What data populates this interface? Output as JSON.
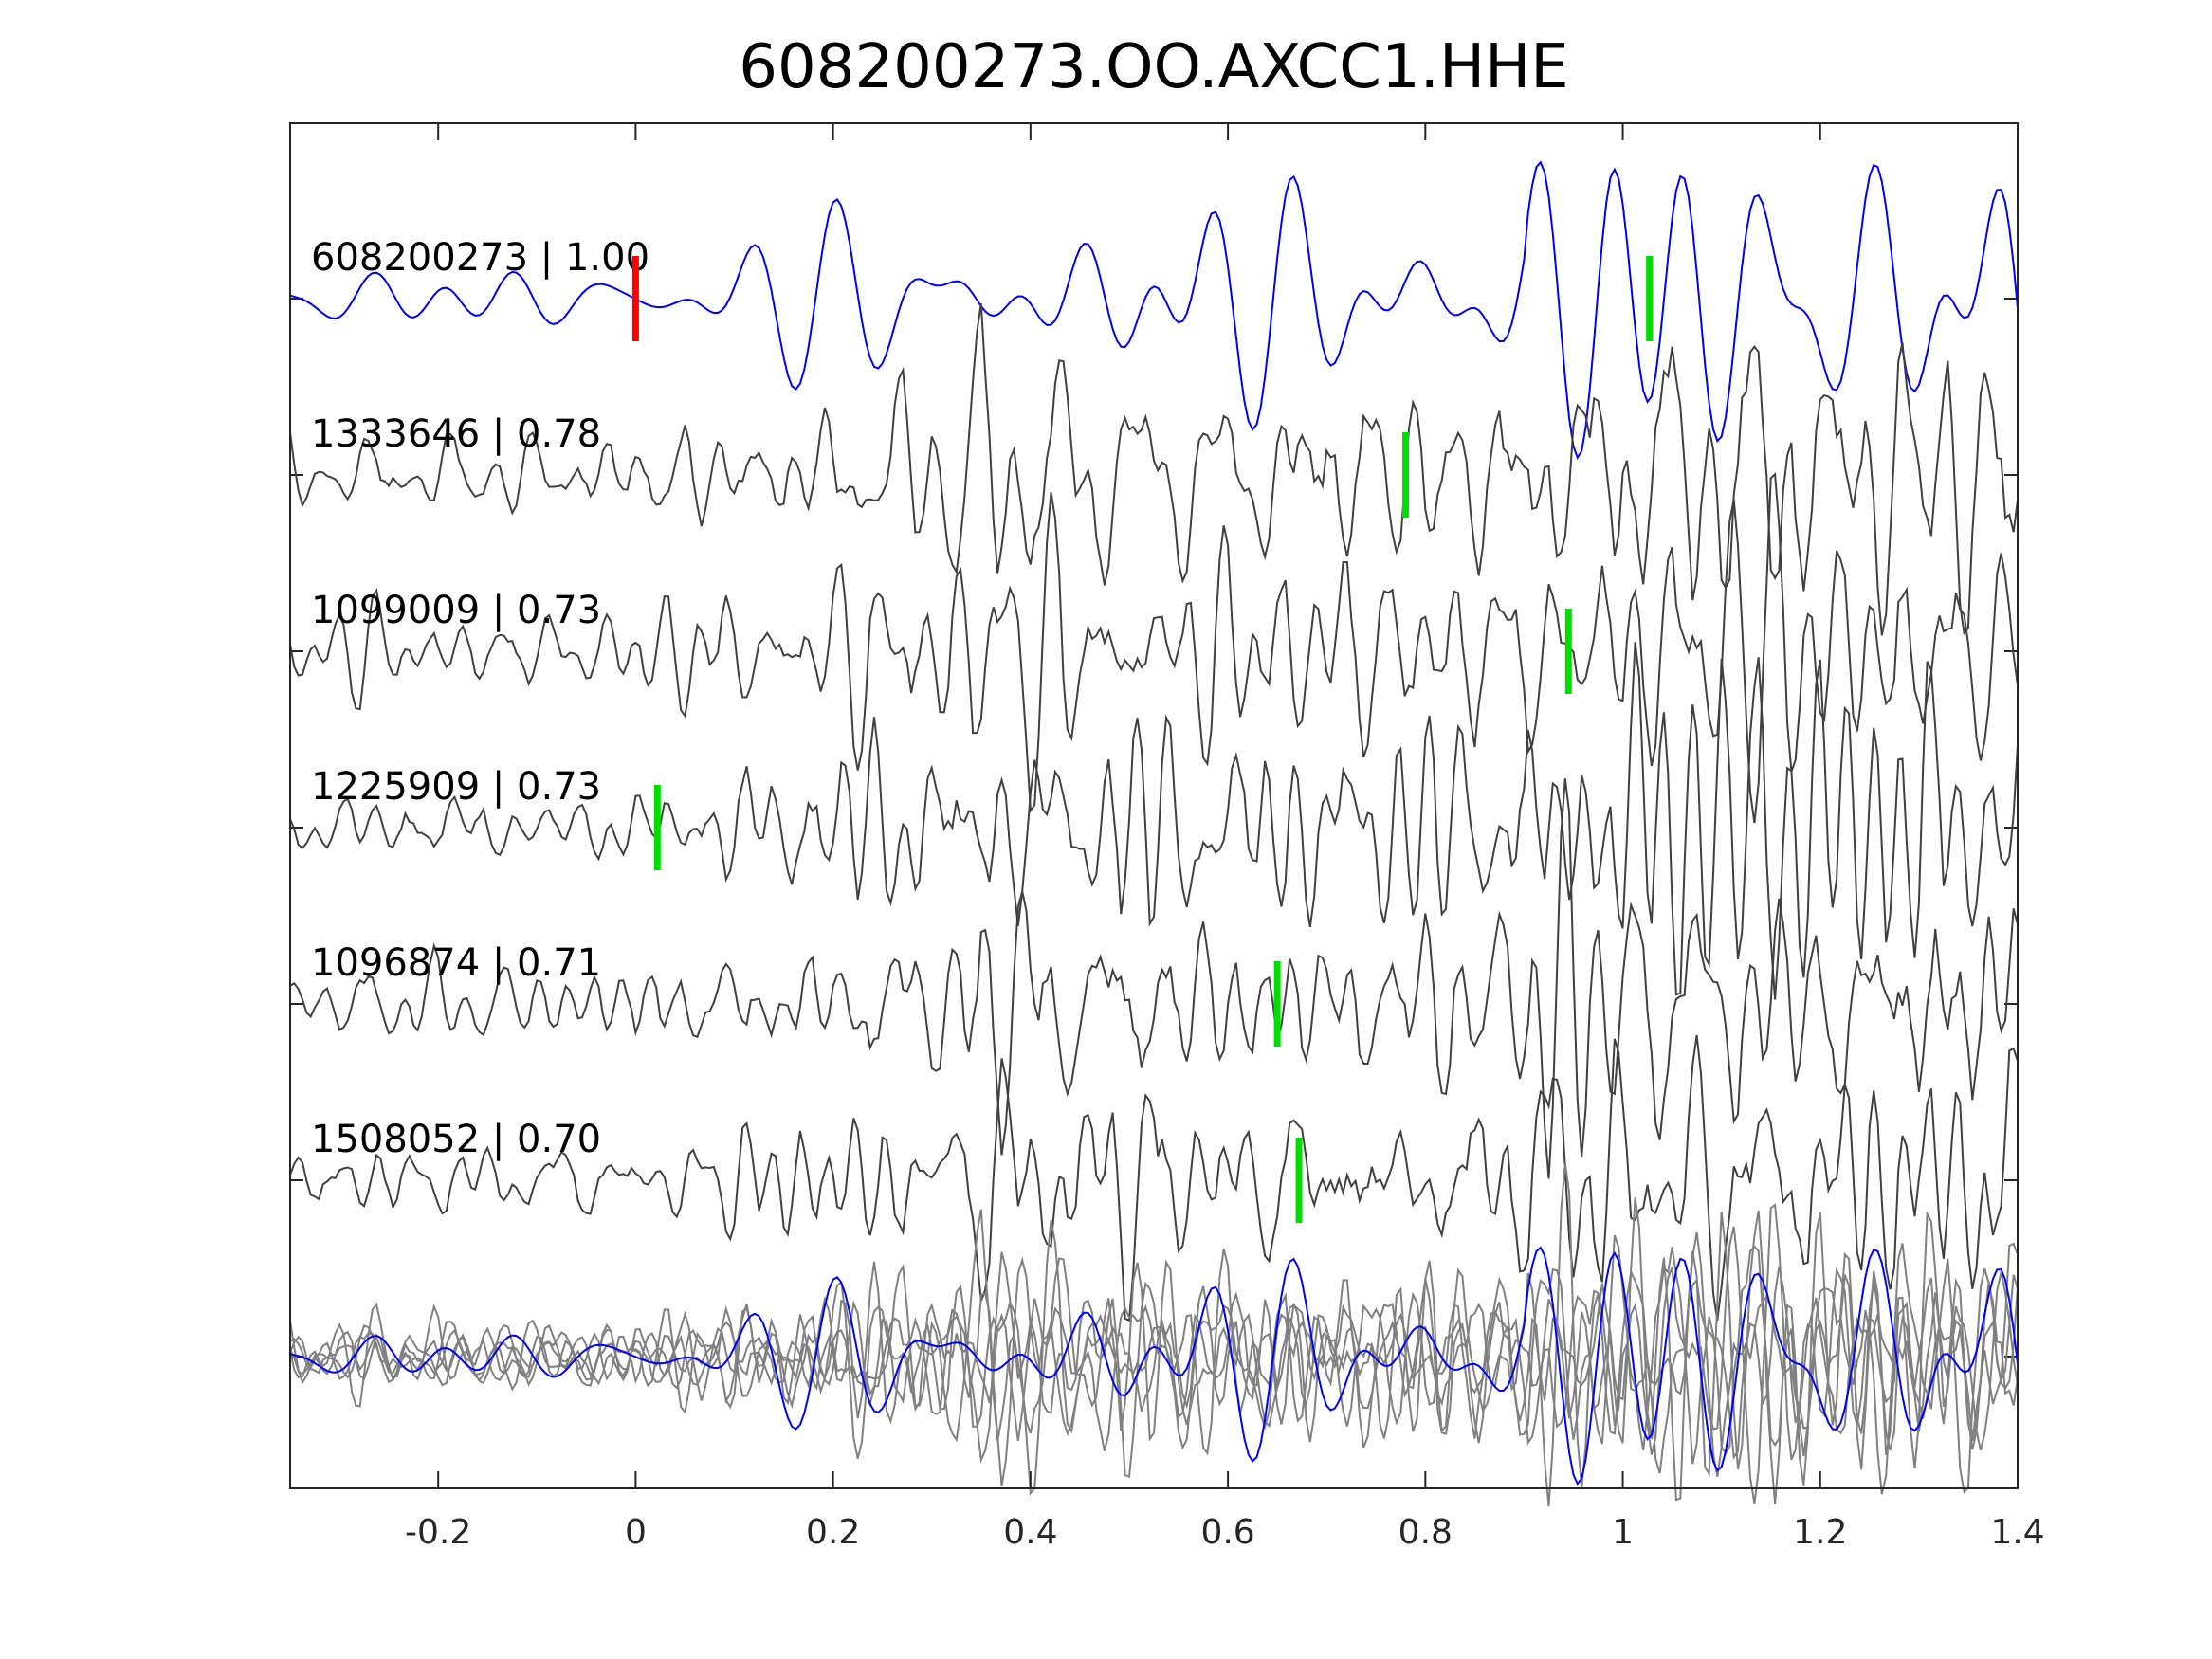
{
  "chart_data": {
    "type": "line",
    "title": "608200273.OO.AXCC1.HHE",
    "xlabel": "",
    "ylabel": "",
    "xlim": [
      -0.35,
      1.4
    ],
    "x_ticks": [
      -0.2,
      0,
      0.2,
      0.4,
      0.6,
      0.8,
      1,
      1.2,
      1.4
    ],
    "x_tick_labels": [
      "-0.2",
      "0",
      "0.2",
      "0.4",
      "0.6",
      "0.8",
      "1",
      "1.2",
      "1.4"
    ],
    "grid": false,
    "reference_pick": 0,
    "traces": [
      {
        "label": "608200273 | 1.00",
        "id": "608200273",
        "cc": 1.0,
        "color": "#0000ff",
        "pick": 1.027
      },
      {
        "label": "1333646 | 0.78",
        "id": "1333646",
        "cc": 0.78,
        "color": "#404040",
        "pick": 0.78
      },
      {
        "label": "1099009 | 0.73",
        "id": "1099009",
        "cc": 0.73,
        "color": "#404040",
        "pick": 0.945
      },
      {
        "label": "1225909 | 0.73",
        "id": "1225909",
        "cc": 0.73,
        "color": "#404040",
        "pick": 0.022
      },
      {
        "label": "1096874 | 0.71",
        "id": "1096874",
        "cc": 0.71,
        "color": "#404040",
        "pick": 0.65
      },
      {
        "label": "1508052 | 0.70",
        "id": "1508052",
        "cc": 0.7,
        "color": "#404040",
        "pick": 0.672
      }
    ],
    "overlay": {
      "description_color": "#808080"
    },
    "colors": {
      "reference_pick": "#ff0000",
      "pick": "#00dd00",
      "axis": "#262626"
    }
  }
}
